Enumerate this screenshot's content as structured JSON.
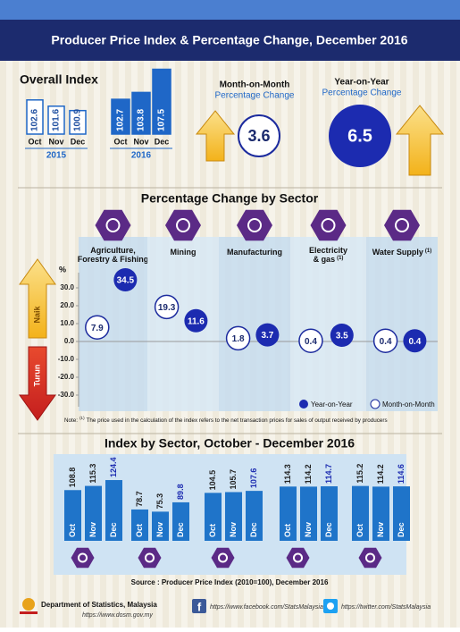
{
  "header": {
    "title": "Producer Price Index & Percentage Change, December 2016"
  },
  "overall": {
    "title": "Overall Index",
    "groups": [
      {
        "year": "2015",
        "months": [
          "Oct",
          "Nov",
          "Dec"
        ],
        "values": [
          102.6,
          101.6,
          100.9
        ]
      },
      {
        "year": "2016",
        "months": [
          "Oct",
          "Nov",
          "Dec"
        ],
        "values": [
          102.7,
          103.8,
          107.5
        ]
      }
    ],
    "mom": {
      "label": "Month-on-Month",
      "sub": "Percentage Change",
      "value": 3.6
    },
    "yoy": {
      "label": "Year-on-Year",
      "sub": "Percentage Change",
      "value": 6.5
    }
  },
  "sector_change": {
    "title": "Percentage Change by Sector",
    "unit": "%",
    "ylim": [
      -45,
      45
    ],
    "yticks": [
      {
        "value": 30,
        "label": "30.0"
      },
      {
        "value": 20,
        "label": "20.0"
      },
      {
        "value": 10,
        "label": "10.0"
      },
      {
        "value": 0,
        "label": "0.0"
      },
      {
        "value": -10,
        "label": "-10.0"
      },
      {
        "value": -20,
        "label": "-20.0"
      },
      {
        "value": -30,
        "label": "-30.0"
      }
    ],
    "up_label": "Naik",
    "down_label": "Turun",
    "sectors": [
      {
        "name": [
          "Agriculture,",
          "Forestry & Fishing"
        ],
        "mom": 7.9,
        "yoy": 34.5
      },
      {
        "name": [
          "Mining"
        ],
        "mom": 19.3,
        "yoy": 11.6
      },
      {
        "name": [
          "Manufacturing"
        ],
        "mom": 1.8,
        "yoy": 3.7
      },
      {
        "name": [
          "Electricity",
          "& gas"
        ],
        "marker": "(1)",
        "mom": 0.4,
        "yoy": 3.5
      },
      {
        "name": [
          "Water Supply"
        ],
        "marker": "(1)",
        "mom": 0.4,
        "yoy": 0.4
      }
    ],
    "legend": {
      "yoy": "Year-on-Year",
      "mom": "Month-on-Month"
    },
    "note": {
      "prefix": "Note:",
      "marker": "(1)",
      "text": "The price used in the calculation of the index refers to the net transaction prices for sales of output received by producers"
    }
  },
  "sector_index": {
    "title": "Index by Sector, October - December 2016",
    "months": [
      "Oct",
      "Nov",
      "Dec"
    ],
    "sectors": [
      [
        108.8,
        115.3,
        124.4
      ],
      [
        78.7,
        75.3,
        89.8
      ],
      [
        104.5,
        105.7,
        107.6
      ],
      [
        114.3,
        114.2,
        114.7
      ],
      [
        115.2,
        114.2,
        114.6
      ]
    ]
  },
  "source": "Source :  Producer Price Index (2010=100), December 2016",
  "footer": {
    "org": "Department of Statistics, Malaysia",
    "website": "https://www.dosm.gov.my",
    "facebook": "https://www.facebook.com/StatsMalaysia",
    "twitter": "https://twitter.com/StatsMalaysia"
  }
}
